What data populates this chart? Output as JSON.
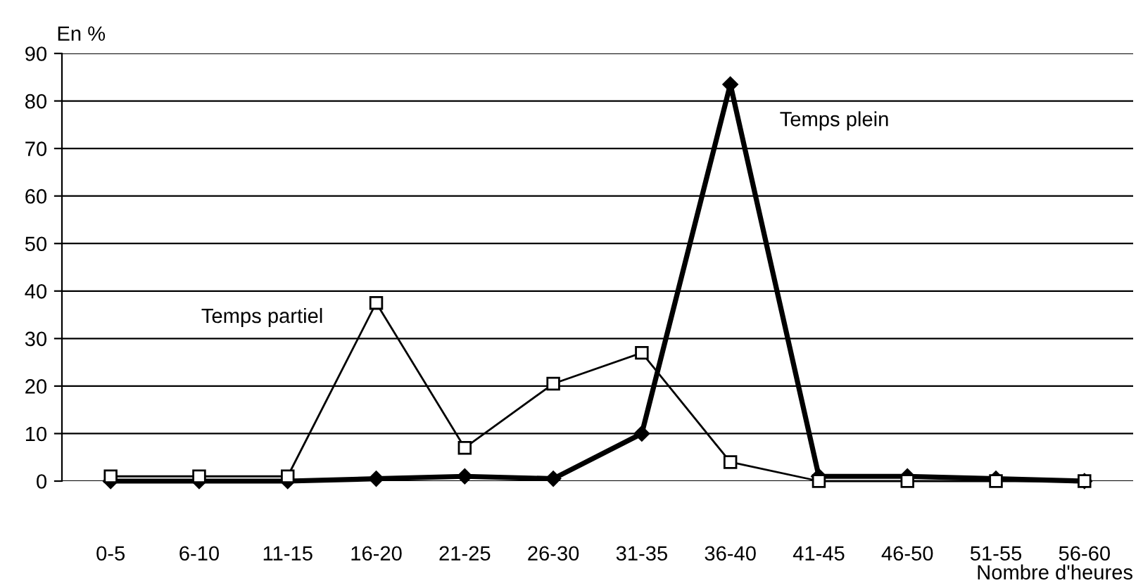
{
  "chart_data": {
    "type": "line",
    "xlabel": "Nombre d'heures",
    "ylabel": "En %",
    "categories": [
      "0-5",
      "6-10",
      "11-15",
      "16-20",
      "21-25",
      "26-30",
      "31-35",
      "36-40",
      "41-45",
      "46-50",
      "51-55",
      "56-60"
    ],
    "series": [
      {
        "name": "Temps partiel",
        "color": "#000000",
        "marker": "square",
        "values": [
          1,
          1,
          1,
          37.5,
          7,
          20.5,
          27,
          4,
          0,
          0,
          0,
          0
        ]
      },
      {
        "name": "Temps plein",
        "color": "#000000",
        "marker": "diamond",
        "values": [
          0,
          0,
          0,
          0.5,
          1,
          0.5,
          10,
          83.5,
          1,
          1,
          0.5,
          0
        ]
      }
    ],
    "ylim": [
      0,
      90
    ],
    "yticks": [
      0,
      10,
      20,
      30,
      40,
      50,
      60,
      70,
      80,
      90
    ],
    "grid": "y",
    "legend": false,
    "line_style": "solid"
  }
}
